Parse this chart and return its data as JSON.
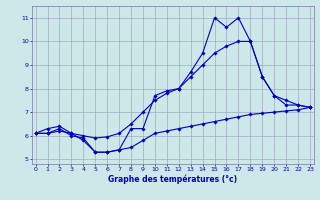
{
  "xlabel": "Graphe des températures (°c)",
  "bg_color": "#cce8e8",
  "grid_color": "#9999bb",
  "line_color": "#0000cc",
  "hours": [
    0,
    1,
    2,
    3,
    4,
    5,
    6,
    7,
    8,
    9,
    10,
    11,
    12,
    13,
    14,
    15,
    16,
    17,
    18,
    19,
    20,
    21,
    22,
    23
  ],
  "temp_curve": [
    6.1,
    6.1,
    6.3,
    6.0,
    5.9,
    5.3,
    5.3,
    5.4,
    6.3,
    6.3,
    7.7,
    7.9,
    8.0,
    8.7,
    9.5,
    11.0,
    10.6,
    11.0,
    10.0,
    8.5,
    7.7,
    7.3,
    7.3,
    7.2
  ],
  "temp_min": [
    6.1,
    6.1,
    6.2,
    6.1,
    5.8,
    5.3,
    5.3,
    5.4,
    5.5,
    5.8,
    6.1,
    6.2,
    6.3,
    6.4,
    6.5,
    6.6,
    6.7,
    6.8,
    6.9,
    6.95,
    7.0,
    7.05,
    7.1,
    7.2
  ],
  "temp_max": [
    6.1,
    6.3,
    6.4,
    6.1,
    6.0,
    5.9,
    5.95,
    6.1,
    6.5,
    7.0,
    7.5,
    7.8,
    8.0,
    8.5,
    9.0,
    9.5,
    9.8,
    10.0,
    10.0,
    8.5,
    7.7,
    7.5,
    7.3,
    7.2
  ],
  "ylim": [
    4.8,
    11.5
  ],
  "yticks": [
    5,
    6,
    7,
    8,
    9,
    10,
    11
  ],
  "xlim": [
    -0.3,
    23.3
  ],
  "xticks": [
    0,
    1,
    2,
    3,
    4,
    5,
    6,
    7,
    8,
    9,
    10,
    11,
    12,
    13,
    14,
    15,
    16,
    17,
    18,
    19,
    20,
    21,
    22,
    23
  ]
}
